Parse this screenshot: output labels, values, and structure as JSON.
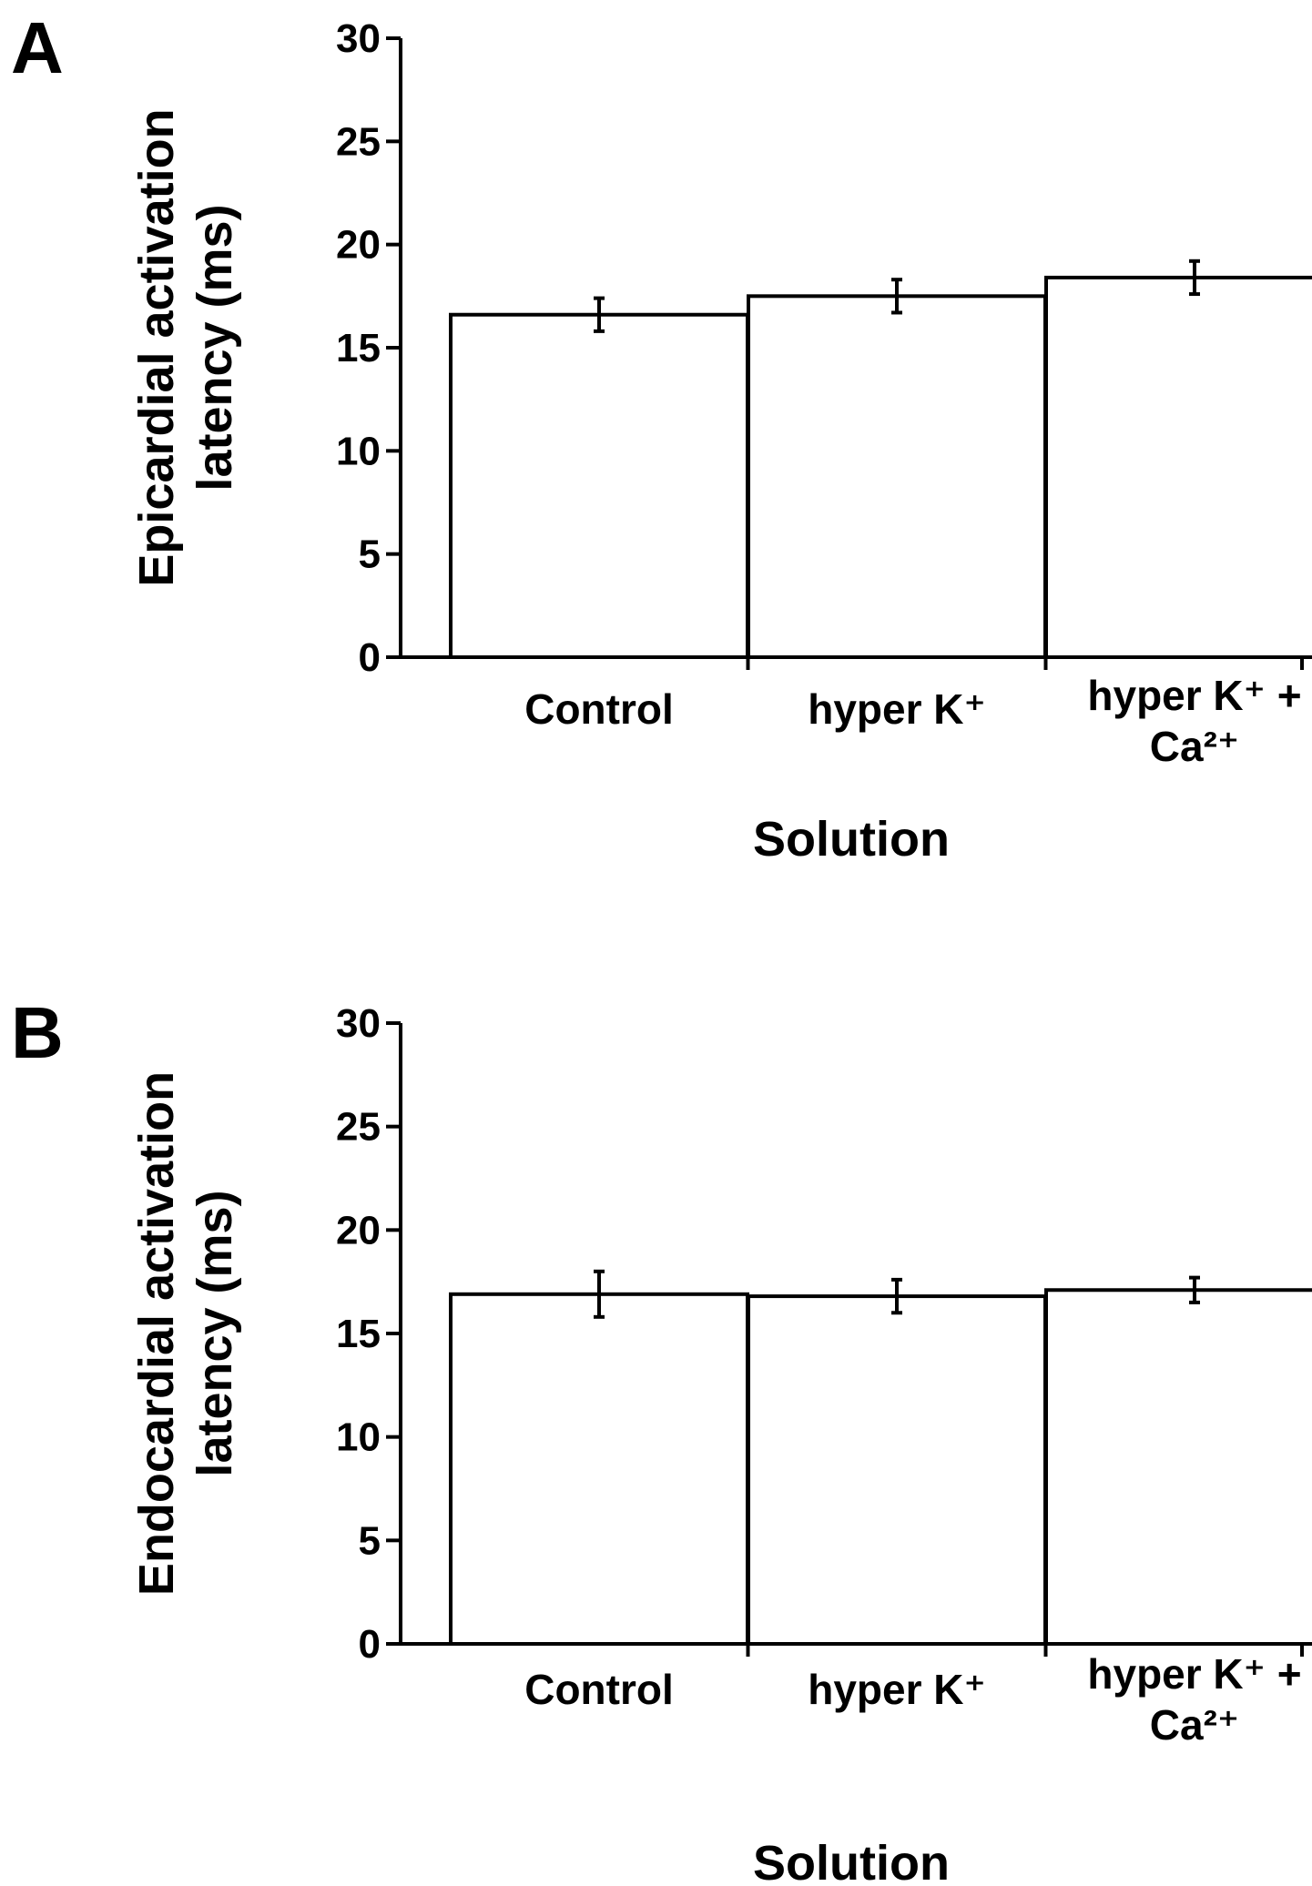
{
  "figure": {
    "panels": [
      {
        "letter": "A"
      },
      {
        "letter": "B"
      }
    ]
  },
  "chart_data": [
    {
      "type": "bar",
      "panel": "A",
      "title": "",
      "categories": [
        "Control",
        "hyper K⁺",
        "hyper K⁺ + Ca²⁺"
      ],
      "category_lines": [
        [
          "Control"
        ],
        [
          "hyper K⁺"
        ],
        [
          "hyper K⁺ +",
          "Ca²⁺"
        ]
      ],
      "values": [
        16.6,
        17.5,
        18.4
      ],
      "errors": [
        0.8,
        0.8,
        0.8
      ],
      "xlabel": "Solution",
      "ylabel": "Epicardial activation latency (ms)",
      "ylabel_lines": [
        "Epicardial activation",
        "latency (ms)"
      ],
      "ylim": [
        0,
        30
      ],
      "yticks": [
        0,
        5,
        10,
        15,
        20,
        25,
        30
      ],
      "grid": false,
      "bar_fill": "#ffffff",
      "bar_stroke": "#000000"
    },
    {
      "type": "bar",
      "panel": "B",
      "title": "",
      "categories": [
        "Control",
        "hyper K⁺",
        "hyper K⁺ + Ca²⁺"
      ],
      "category_lines": [
        [
          "Control"
        ],
        [
          "hyper K⁺"
        ],
        [
          "hyper K⁺ +",
          "Ca²⁺"
        ]
      ],
      "values": [
        16.9,
        16.8,
        17.1
      ],
      "errors": [
        1.1,
        0.8,
        0.6
      ],
      "xlabel": "Solution",
      "ylabel": "Endocardial activation latency (ms)",
      "ylabel_lines": [
        "Endocardial activation",
        "latency (ms)"
      ],
      "ylim": [
        0,
        30
      ],
      "yticks": [
        0,
        5,
        10,
        15,
        20,
        25,
        30
      ],
      "grid": false,
      "bar_fill": "#ffffff",
      "bar_stroke": "#000000"
    }
  ]
}
